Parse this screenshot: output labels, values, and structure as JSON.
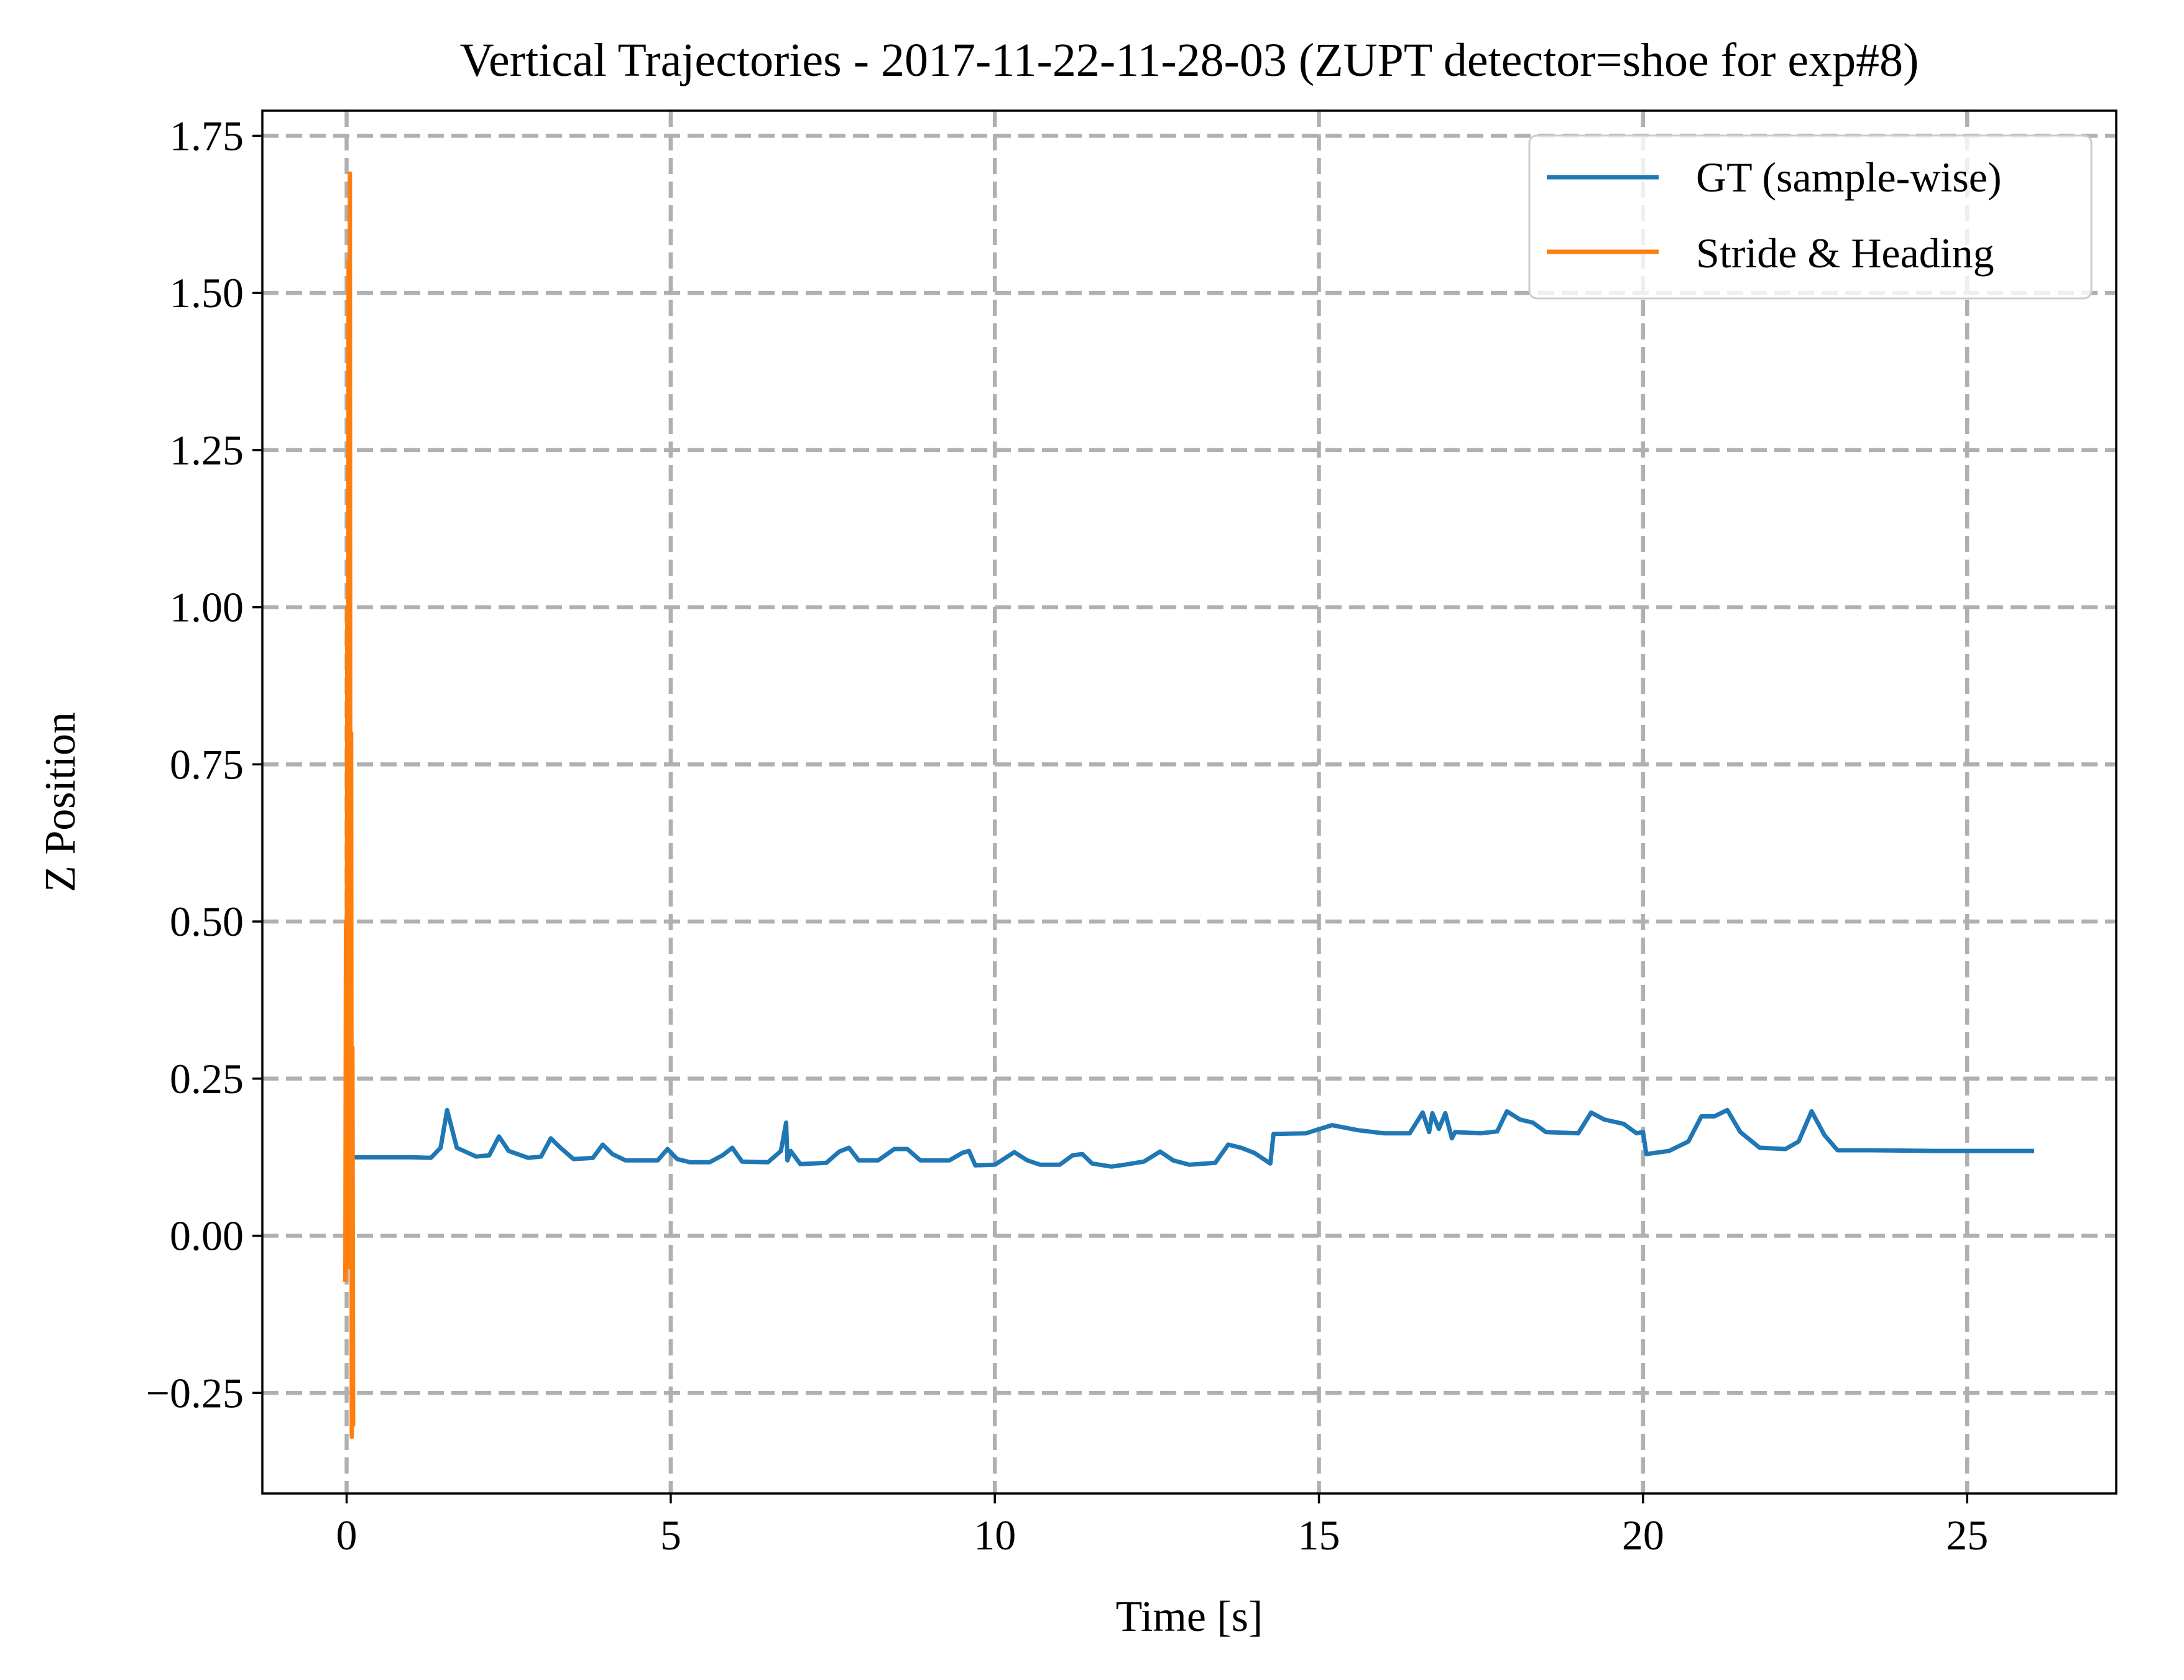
{
  "chart_data": {
    "type": "line",
    "title": "Vertical Trajectories - 2017-11-22-11-28-03 (ZUPT detector=shoe for exp#8)",
    "xlabel": "Time [s]",
    "ylabel": "Z Position",
    "xlim": [
      -1.3,
      27.3
    ],
    "ylim": [
      -0.41,
      1.79
    ],
    "xticks": [
      0,
      5,
      10,
      15,
      20,
      25
    ],
    "xtick_labels": [
      "0",
      "5",
      "10",
      "15",
      "20",
      "25"
    ],
    "yticks": [
      -0.25,
      0.0,
      0.25,
      0.5,
      0.75,
      1.0,
      1.25,
      1.5,
      1.75
    ],
    "ytick_labels": [
      "−0.25",
      "0.00",
      "0.25",
      "0.50",
      "0.75",
      "1.00",
      "1.25",
      "1.50",
      "1.75"
    ],
    "grid": true,
    "legend_position": "top-right",
    "series": [
      {
        "name": "GT (sample-wise)",
        "color": "#1f77b4",
        "x": [
          0.1,
          1.0,
          1.3,
          1.45,
          1.55,
          1.7,
          2.0,
          2.2,
          2.35,
          2.5,
          2.8,
          3.0,
          3.15,
          3.3,
          3.5,
          3.8,
          3.95,
          4.1,
          4.3,
          4.8,
          4.95,
          5.1,
          5.3,
          5.6,
          5.8,
          5.95,
          6.1,
          6.5,
          6.7,
          6.78,
          6.8,
          6.85,
          7.0,
          7.4,
          7.6,
          7.75,
          7.9,
          8.2,
          8.45,
          8.65,
          8.85,
          9.3,
          9.5,
          9.6,
          9.7,
          10.0,
          10.3,
          10.5,
          10.7,
          11.0,
          11.2,
          11.35,
          11.5,
          11.8,
          12.0,
          12.3,
          12.55,
          12.75,
          13.0,
          13.4,
          13.6,
          13.8,
          14.0,
          14.25,
          14.3,
          14.8,
          15.2,
          15.6,
          16.0,
          16.4,
          16.6,
          16.7,
          16.75,
          16.85,
          16.95,
          17.05,
          17.1,
          17.5,
          17.75,
          17.9,
          18.1,
          18.3,
          18.5,
          19.0,
          19.2,
          19.4,
          19.7,
          19.9,
          20.0,
          20.05,
          20.4,
          20.7,
          20.9,
          21.1,
          21.3,
          21.5,
          21.8,
          22.2,
          22.4,
          22.6,
          22.8,
          23.0,
          23.5,
          24.5,
          25.5,
          26.0
        ],
        "values": [
          0.125,
          0.125,
          0.124,
          0.14,
          0.2,
          0.14,
          0.126,
          0.128,
          0.158,
          0.135,
          0.124,
          0.126,
          0.155,
          0.14,
          0.122,
          0.124,
          0.145,
          0.13,
          0.12,
          0.12,
          0.138,
          0.122,
          0.117,
          0.117,
          0.128,
          0.14,
          0.118,
          0.117,
          0.135,
          0.18,
          0.12,
          0.135,
          0.114,
          0.116,
          0.134,
          0.14,
          0.12,
          0.12,
          0.138,
          0.138,
          0.12,
          0.12,
          0.132,
          0.135,
          0.112,
          0.113,
          0.133,
          0.12,
          0.113,
          0.113,
          0.128,
          0.13,
          0.115,
          0.11,
          0.113,
          0.118,
          0.134,
          0.12,
          0.113,
          0.116,
          0.145,
          0.14,
          0.132,
          0.115,
          0.162,
          0.163,
          0.176,
          0.168,
          0.163,
          0.163,
          0.196,
          0.165,
          0.195,
          0.17,
          0.195,
          0.155,
          0.165,
          0.163,
          0.166,
          0.198,
          0.185,
          0.18,
          0.165,
          0.163,
          0.196,
          0.185,
          0.178,
          0.163,
          0.165,
          0.13,
          0.135,
          0.15,
          0.19,
          0.19,
          0.2,
          0.165,
          0.14,
          0.138,
          0.15,
          0.198,
          0.16,
          0.136,
          0.136,
          0.135,
          0.135,
          0.135
        ]
      },
      {
        "name": "Stride & Heading",
        "color": "#ff7f0e",
        "x": [
          -0.02,
          -0.01,
          0.0,
          0.01,
          0.02,
          0.03,
          0.04,
          0.05,
          0.06,
          0.07,
          0.08,
          0.09,
          0.1
        ],
        "values": [
          -0.07,
          0.5,
          0.05,
          1.0,
          -0.05,
          1.55,
          0.2,
          1.69,
          -0.02,
          0.8,
          -0.32,
          0.3,
          -0.3
        ]
      }
    ]
  }
}
